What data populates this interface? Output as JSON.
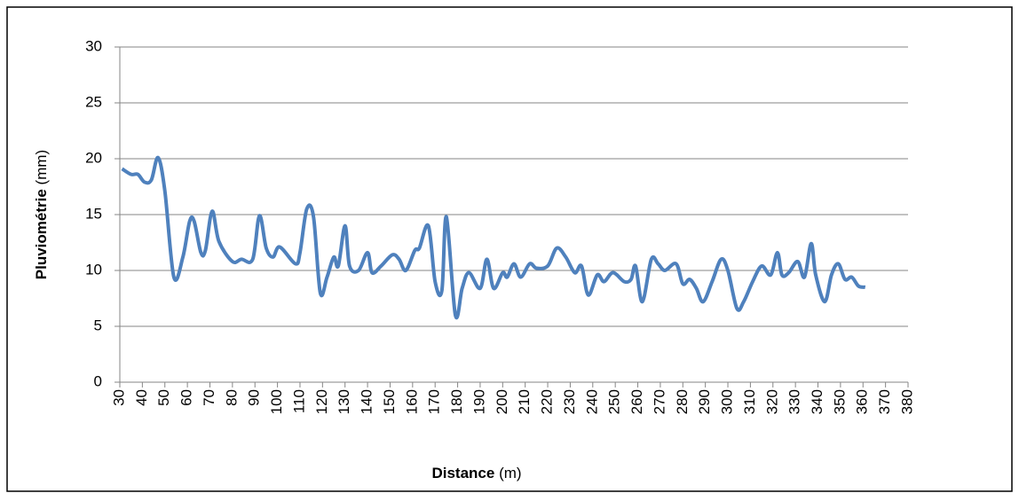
{
  "chart_data": {
    "type": "line",
    "ylabel": "Pluviométrie",
    "ylabel_unit": "(mm)",
    "xlabel": "Distance",
    "xlabel_unit": "(m)",
    "x": [
      31,
      35,
      38,
      41,
      44,
      47,
      50,
      54,
      58,
      61,
      63,
      66,
      68,
      71,
      74,
      80,
      84,
      89,
      92,
      95,
      98,
      101,
      108,
      110,
      113,
      116,
      119,
      122,
      125,
      127,
      130,
      132,
      136,
      140,
      142,
      146,
      151,
      154,
      157,
      161,
      163,
      167,
      170,
      173,
      175,
      179,
      182,
      185,
      190,
      193,
      196,
      200,
      202,
      205,
      208,
      212,
      215,
      220,
      224,
      228,
      232,
      235,
      238,
      242,
      245,
      249,
      254,
      257,
      259,
      262,
      266,
      269,
      272,
      277,
      280,
      283,
      286,
      289,
      293,
      297,
      300,
      304,
      307,
      311,
      315,
      319,
      322,
      324,
      327,
      331,
      334,
      337,
      339,
      343,
      346,
      349,
      352,
      355,
      358,
      361
    ],
    "series": [
      {
        "name": "Pluviométrie",
        "color": "#4f81bd",
        "values": [
          19.1,
          18.6,
          18.6,
          17.9,
          18.1,
          20.1,
          17.1,
          9.4,
          11.2,
          14.4,
          14.4,
          11.6,
          11.8,
          15.3,
          12.6,
          10.8,
          11.0,
          11.0,
          14.9,
          12.0,
          11.2,
          12.1,
          10.6,
          11.6,
          15.5,
          14.8,
          8.0,
          9.4,
          11.2,
          10.4,
          14.0,
          10.4,
          10.0,
          11.6,
          9.8,
          10.4,
          11.4,
          11.0,
          10.0,
          11.8,
          12.0,
          14.0,
          9.0,
          8.2,
          14.8,
          6.0,
          8.4,
          9.8,
          8.4,
          11.0,
          8.4,
          9.8,
          9.4,
          10.6,
          9.4,
          10.6,
          10.2,
          10.4,
          12.0,
          11.2,
          9.8,
          10.4,
          7.8,
          9.6,
          9.0,
          9.8,
          9.0,
          9.2,
          10.4,
          7.2,
          11.0,
          10.6,
          10.0,
          10.6,
          8.8,
          9.2,
          8.4,
          7.2,
          9.0,
          11.0,
          10.0,
          6.6,
          7.2,
          9.0,
          10.4,
          9.6,
          11.6,
          9.6,
          9.8,
          10.8,
          9.4,
          12.4,
          9.6,
          7.2,
          9.6,
          10.6,
          9.2,
          9.4,
          8.6,
          8.5
        ]
      }
    ],
    "xlim": [
      30,
      380
    ],
    "xticks": [
      30,
      40,
      50,
      60,
      70,
      80,
      90,
      100,
      110,
      120,
      130,
      140,
      150,
      160,
      170,
      180,
      190,
      200,
      210,
      220,
      230,
      240,
      250,
      260,
      270,
      280,
      290,
      300,
      310,
      320,
      330,
      340,
      350,
      360,
      370,
      380
    ],
    "ylim": [
      0,
      30
    ],
    "yticks": [
      0,
      5,
      10,
      15,
      20,
      25,
      30
    ],
    "grid": true
  }
}
